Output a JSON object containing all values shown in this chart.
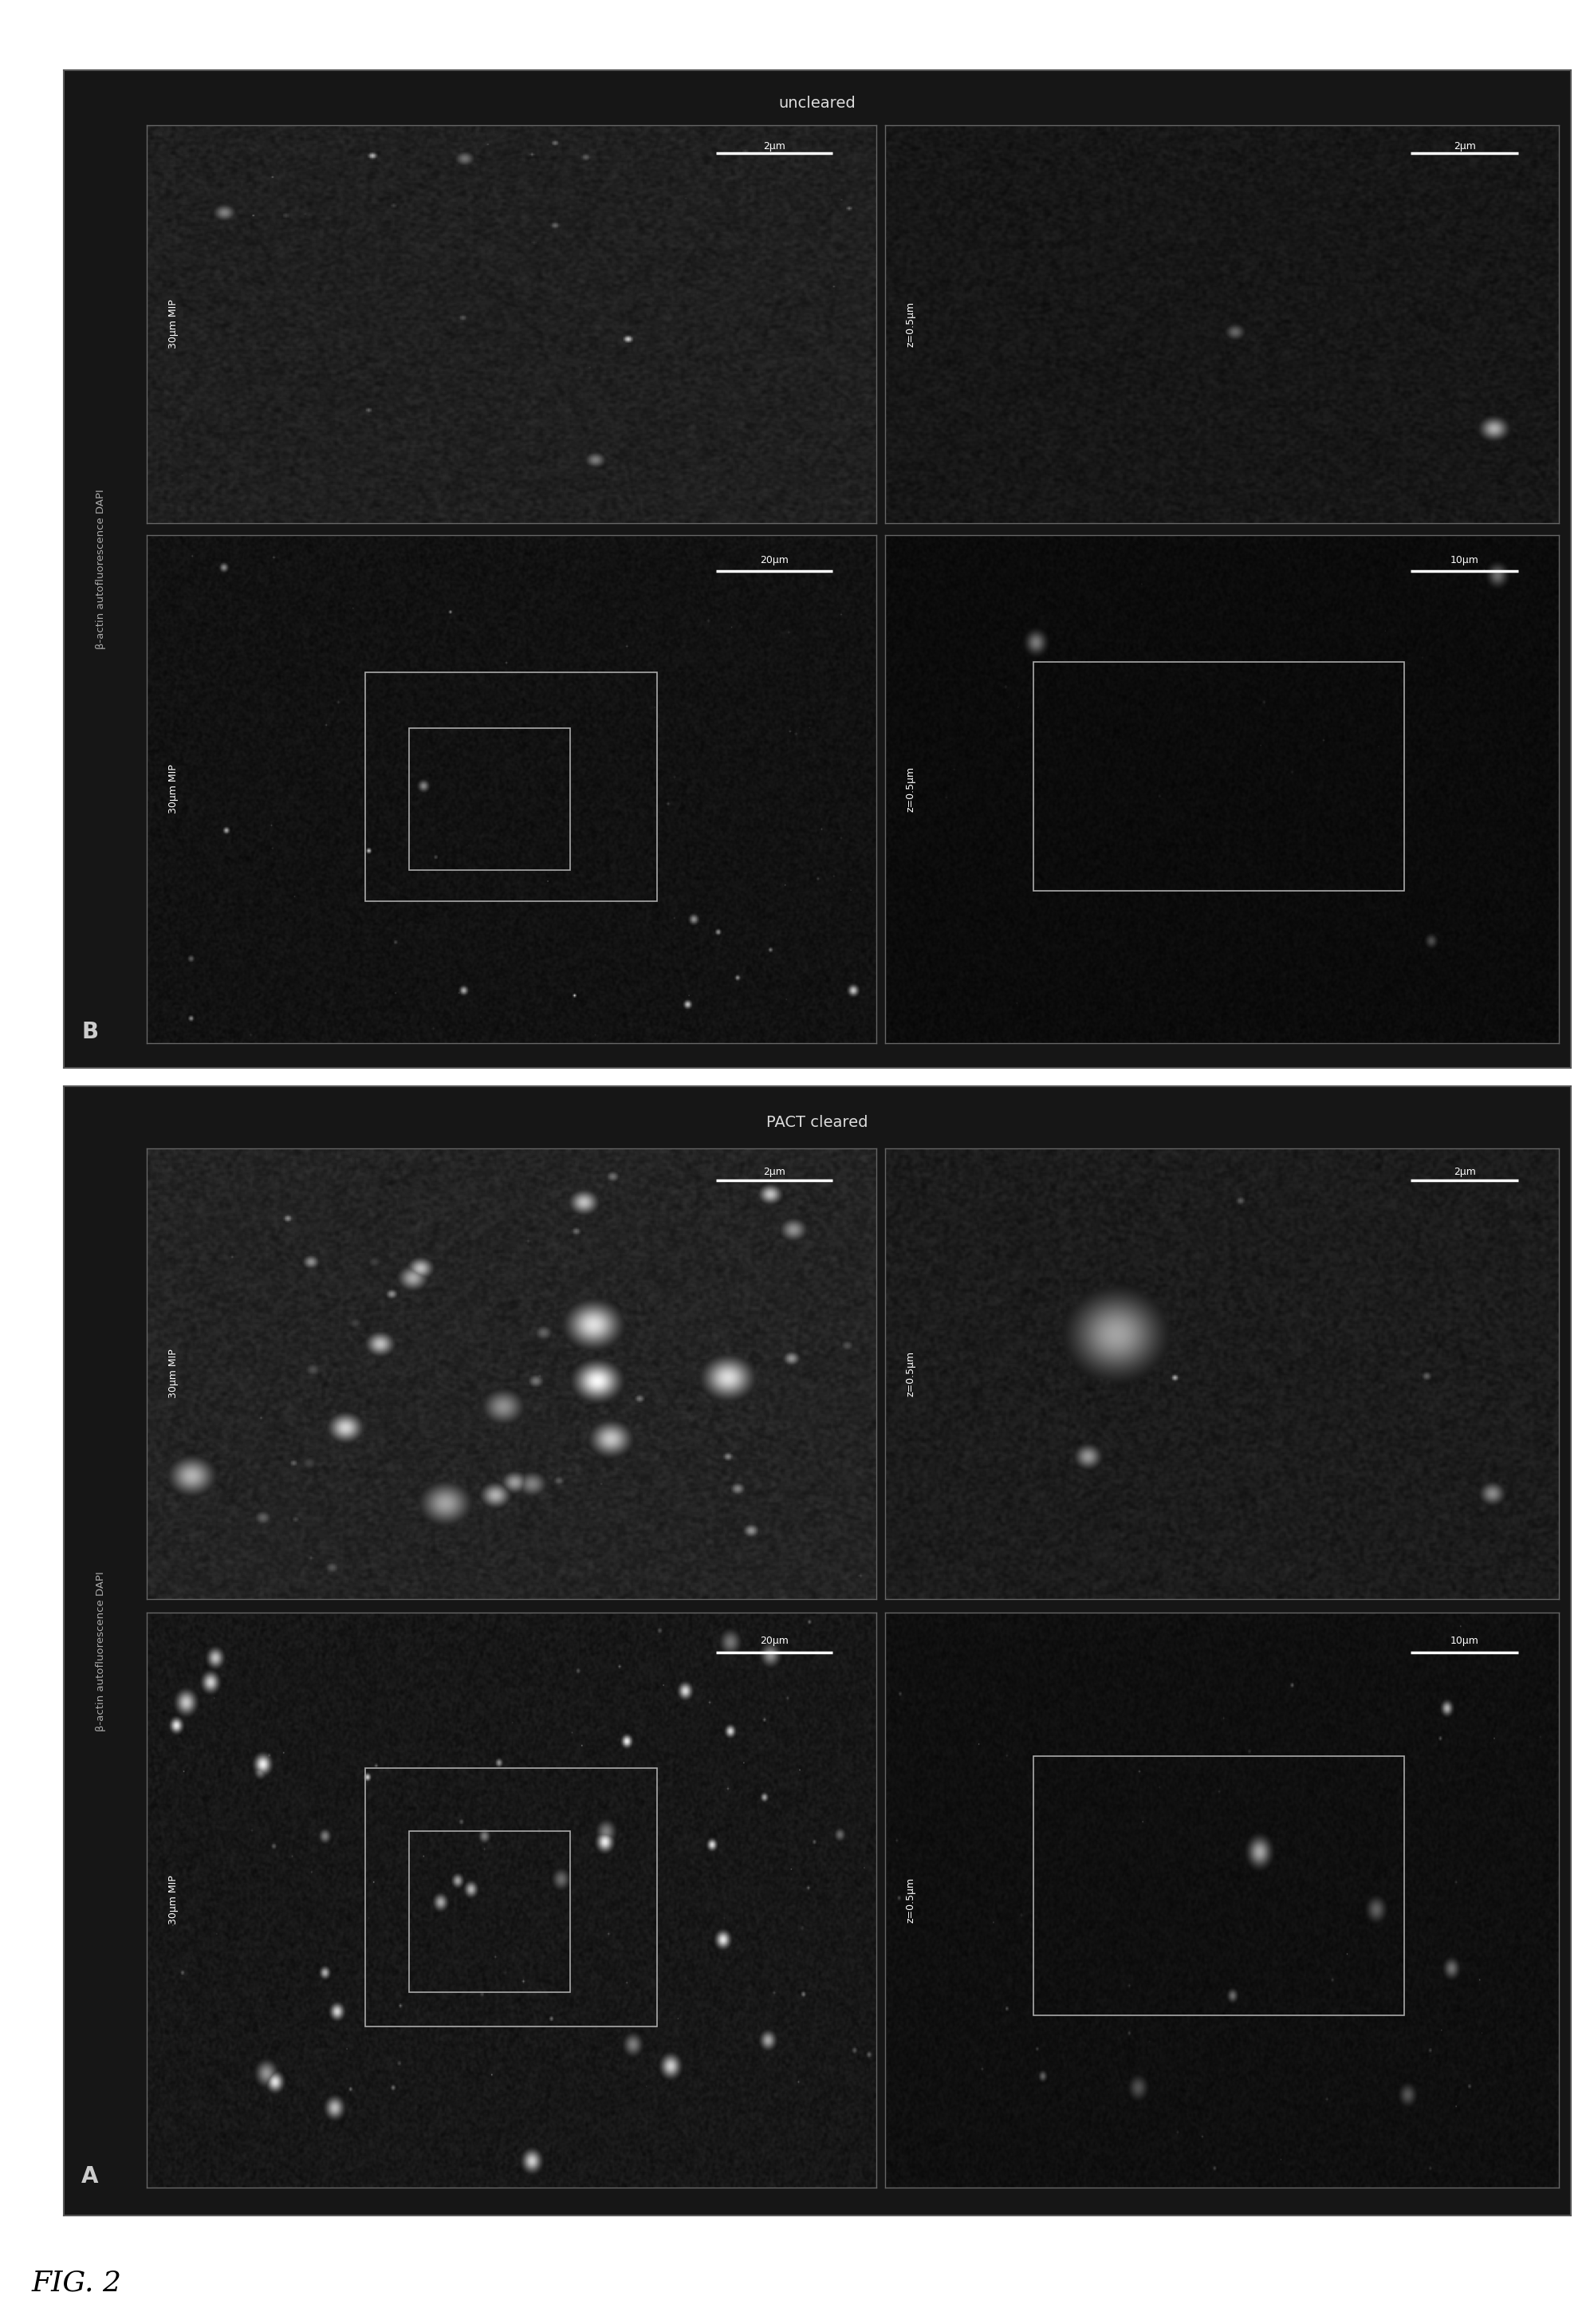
{
  "fig_label": "FIG. 2",
  "background_color": "#ffffff",
  "panel_bg": "#111111",
  "dark_bg": "#1c1c1c",
  "section_A_label": "A",
  "section_B_label": "B",
  "section_A_title": "PACT cleared",
  "section_B_title": "uncleared",
  "channel_label": "β-actin autofluorescence DAPI",
  "text_color": "#ffffff",
  "border_color": "#888888",
  "label_fontsize": 11,
  "title_fontsize": 14,
  "fig_label_fontsize": 26,
  "panels": {
    "A_large_mip": {
      "z_label": "30μm MIP",
      "scale": "20μm"
    },
    "A_large_sz": {
      "z_label": "z=0.5μm",
      "scale": "10μm"
    },
    "A_zoom_mip": {
      "z_label": "30μm MIP",
      "scale": "2μm"
    },
    "A_zoom_sz": {
      "z_label": "z=0.5μm",
      "scale": "2μm"
    },
    "B_large_mip": {
      "z_label": "30μm MIP",
      "scale": "20μm"
    },
    "B_large_sz": {
      "z_label": "z=0.5μm",
      "scale": "10μm"
    },
    "B_zoom_mip": {
      "z_label": "30μm MIP",
      "scale": "2μm"
    },
    "B_zoom_sz": {
      "z_label": "z=0.5μm",
      "scale": "2μm"
    }
  }
}
